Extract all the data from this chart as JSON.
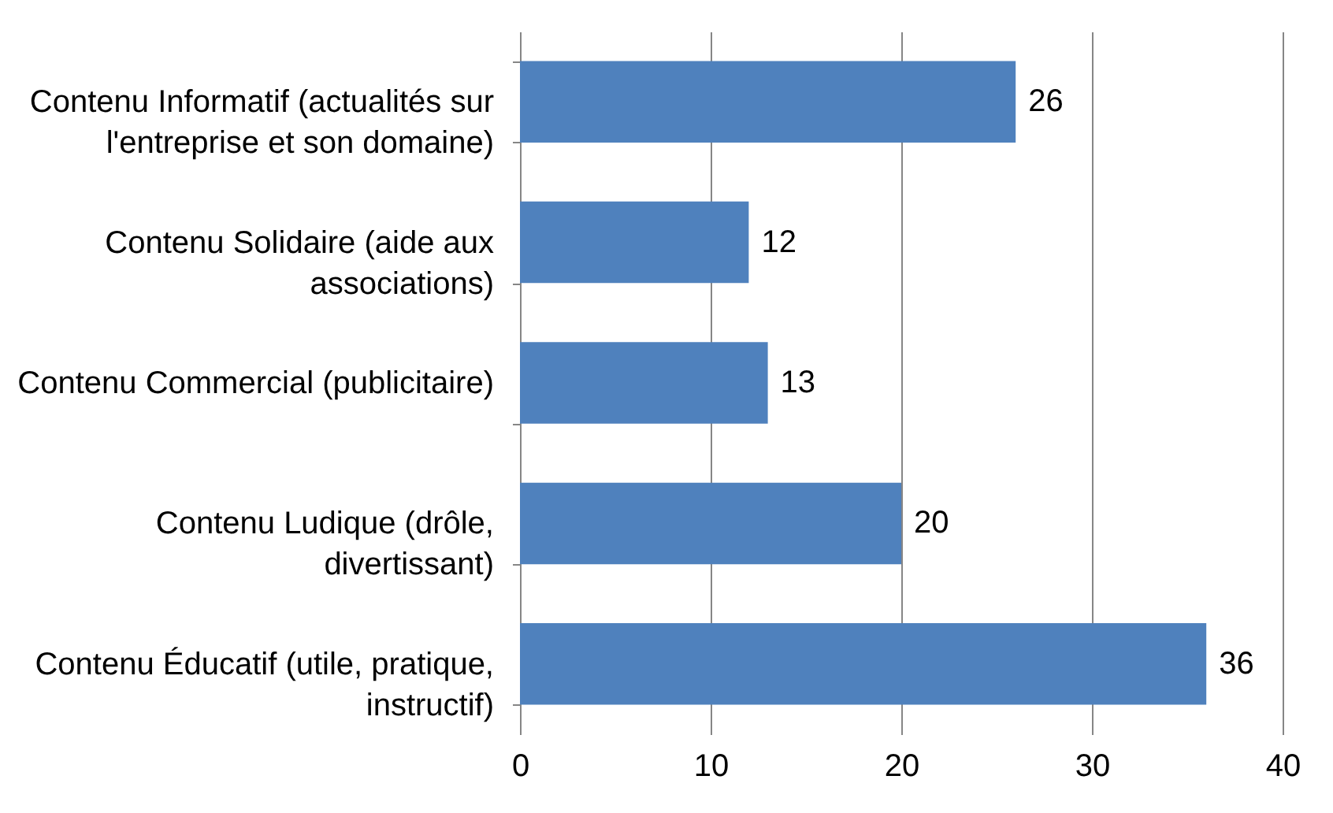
{
  "chart_data": {
    "type": "bar",
    "orientation": "horizontal",
    "categories": [
      "Contenu Informatif (actualités sur l'entreprise et son domaine)",
      "Contenu Solidaire (aide aux associations)",
      "Contenu Commercial (publicitaire)",
      "Contenu Ludique (drôle, divertissant)",
      "Contenu Éducatif (utile, pratique, instructif)"
    ],
    "values": [
      26,
      12,
      13,
      20,
      36
    ],
    "color": "#4f81bd",
    "xlim": [
      0,
      40
    ],
    "xticks": [
      0,
      10,
      20,
      30,
      40
    ],
    "grid": "x",
    "data_labels": true
  }
}
